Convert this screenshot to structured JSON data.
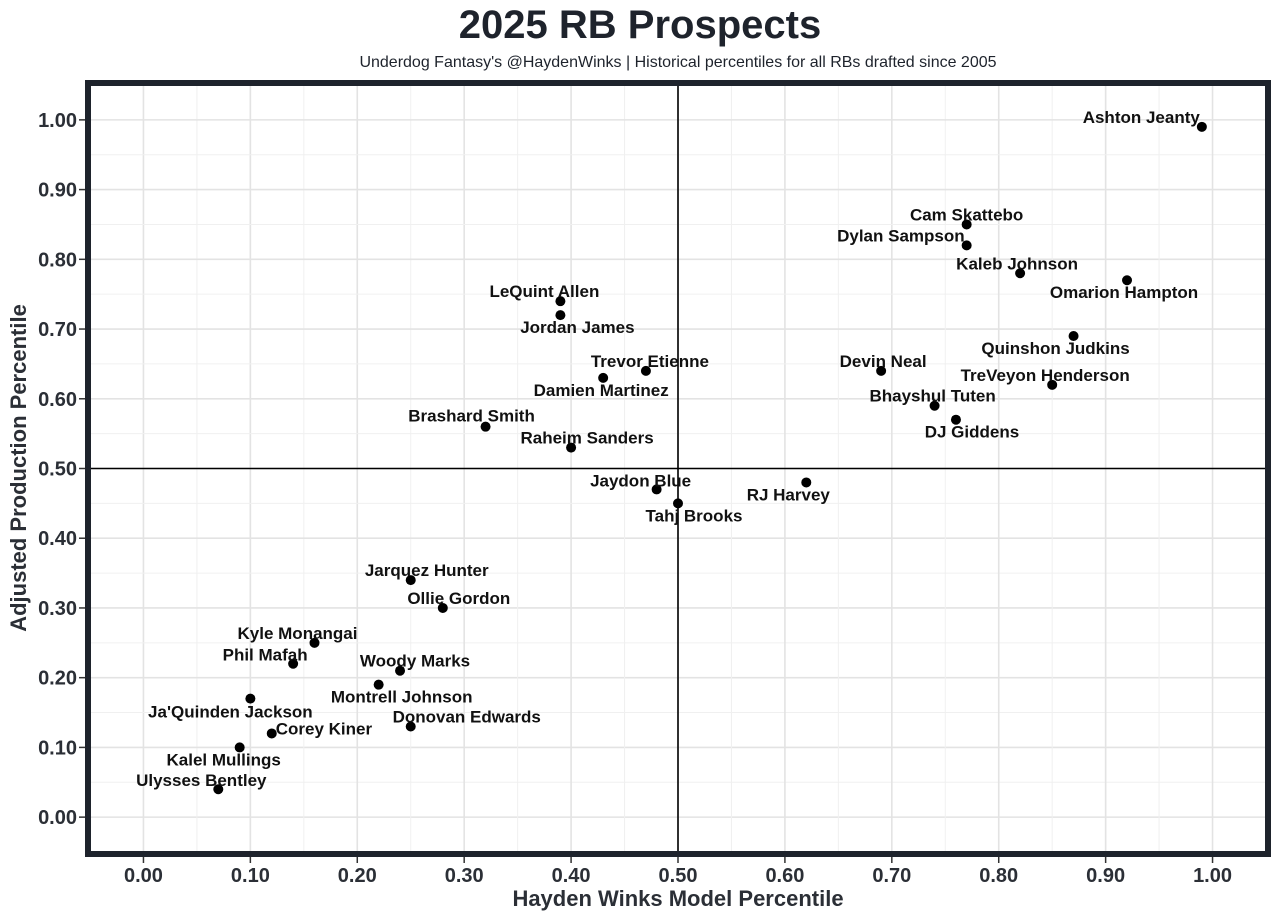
{
  "header": {
    "title": "2025 RB Prospects",
    "subtitle": "Underdog Fantasy's @HaydenWinks | Historical percentiles for all RBs drafted since 2005"
  },
  "colors": {
    "frame": "#1e232c",
    "grid_major": "#e3e3e3",
    "grid_minor": "#f0f0f0",
    "point": "#000000",
    "reference_line": "#000000"
  },
  "chart_data": {
    "type": "scatter",
    "title": "2025 RB Prospects",
    "subtitle": "Underdog Fantasy's @HaydenWinks | Historical percentiles for all RBs drafted since 2005",
    "xlabel": "Hayden Winks Model Percentile",
    "ylabel": "Adjusted Production Percentile",
    "xlim": [
      -0.05,
      1.05
    ],
    "ylim": [
      -0.05,
      1.05
    ],
    "xticks": [
      "0.00",
      "0.10",
      "0.20",
      "0.30",
      "0.40",
      "0.50",
      "0.60",
      "0.70",
      "0.80",
      "0.90",
      "1.00"
    ],
    "yticks": [
      "0.00",
      "0.10",
      "0.20",
      "0.30",
      "0.40",
      "0.50",
      "0.60",
      "0.70",
      "0.80",
      "0.90",
      "1.00"
    ],
    "reference_lines": {
      "x": 0.5,
      "y": 0.5
    },
    "grid": true,
    "points": [
      {
        "name": "Ashton Jeanty",
        "x": 0.99,
        "y": 0.99
      },
      {
        "name": "Cam Skattebo",
        "x": 0.77,
        "y": 0.85
      },
      {
        "name": "Dylan Sampson",
        "x": 0.77,
        "y": 0.82
      },
      {
        "name": "Kaleb Johnson",
        "x": 0.82,
        "y": 0.78
      },
      {
        "name": "Omarion Hampton",
        "x": 0.92,
        "y": 0.77
      },
      {
        "name": "LeQuint Allen",
        "x": 0.39,
        "y": 0.74
      },
      {
        "name": "Jordan James",
        "x": 0.39,
        "y": 0.72
      },
      {
        "name": "Quinshon Judkins",
        "x": 0.87,
        "y": 0.69
      },
      {
        "name": "Trevor Etienne",
        "x": 0.47,
        "y": 0.64
      },
      {
        "name": "Devin Neal",
        "x": 0.69,
        "y": 0.64
      },
      {
        "name": "Damien Martinez",
        "x": 0.43,
        "y": 0.63
      },
      {
        "name": "TreVeyon Henderson",
        "x": 0.85,
        "y": 0.62
      },
      {
        "name": "Bhayshul Tuten",
        "x": 0.74,
        "y": 0.59
      },
      {
        "name": "DJ Giddens",
        "x": 0.76,
        "y": 0.57
      },
      {
        "name": "Brashard Smith",
        "x": 0.32,
        "y": 0.56
      },
      {
        "name": "Raheim Sanders",
        "x": 0.4,
        "y": 0.53
      },
      {
        "name": "RJ Harvey",
        "x": 0.62,
        "y": 0.48
      },
      {
        "name": "Jaydon Blue",
        "x": 0.48,
        "y": 0.47
      },
      {
        "name": "Tahj Brooks",
        "x": 0.5,
        "y": 0.45
      },
      {
        "name": "Jarquez Hunter",
        "x": 0.25,
        "y": 0.34
      },
      {
        "name": "Ollie Gordon",
        "x": 0.28,
        "y": 0.3
      },
      {
        "name": "Kyle Monangai",
        "x": 0.16,
        "y": 0.25
      },
      {
        "name": "Phil Mafah",
        "x": 0.14,
        "y": 0.22
      },
      {
        "name": "Woody Marks",
        "x": 0.24,
        "y": 0.21
      },
      {
        "name": "Montrell Johnson",
        "x": 0.22,
        "y": 0.19
      },
      {
        "name": "Ja'Quinden Jackson",
        "x": 0.1,
        "y": 0.17
      },
      {
        "name": "Donovan Edwards",
        "x": 0.25,
        "y": 0.13
      },
      {
        "name": "Corey Kiner",
        "x": 0.12,
        "y": 0.12
      },
      {
        "name": "Kalel Mullings",
        "x": 0.09,
        "y": 0.1
      },
      {
        "name": "Ulysses Bentley",
        "x": 0.07,
        "y": 0.04
      }
    ]
  }
}
